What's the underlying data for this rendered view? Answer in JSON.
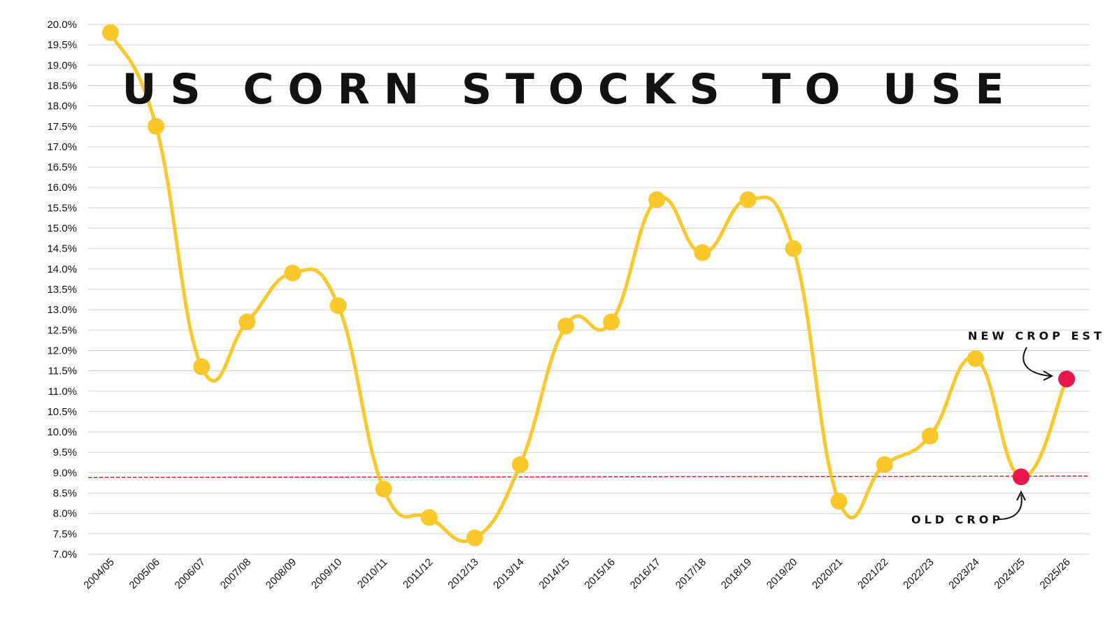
{
  "chart_data": {
    "type": "line",
    "title": "US CORN STOCKS TO USE",
    "categories": [
      "2004/05",
      "2005/06",
      "2006/07",
      "2007/08",
      "2008/09",
      "2009/10",
      "2010/11",
      "2011/12",
      "2012/13",
      "2013/14",
      "2014/15",
      "2015/16",
      "2016/17",
      "2017/18",
      "2018/19",
      "2019/20",
      "2020/21",
      "2021/22",
      "2022/23",
      "2023/24",
      "2024/25",
      "2025/26"
    ],
    "series": [
      {
        "values": [
          19.8,
          17.5,
          11.6,
          12.7,
          13.9,
          13.1,
          8.6,
          7.9,
          7.4,
          9.2,
          12.6,
          12.7,
          15.7,
          14.4,
          15.7,
          14.5,
          8.3,
          9.2,
          9.9,
          11.8,
          8.9,
          11.3
        ]
      }
    ],
    "highlighted_points": [
      {
        "category": "2024/25",
        "value": 8.9,
        "color": "#e8164a"
      },
      {
        "category": "2025/26",
        "value": 11.3,
        "color": "#e8164a"
      }
    ],
    "reference_line": {
      "value": 8.9,
      "color": "#e8161e",
      "style": "dashed"
    },
    "ylim": [
      7.0,
      20.0
    ],
    "y_ticks": [
      "7.0%",
      "7.5%",
      "8.0%",
      "8.5%",
      "9.0%",
      "9.5%",
      "10.0%",
      "10.5%",
      "11.0%",
      "11.5%",
      "12.0%",
      "12.5%",
      "13.0%",
      "13.5%",
      "14.0%",
      "14.5%",
      "15.0%",
      "15.5%",
      "16.0%",
      "16.5%",
      "17.0%",
      "17.5%",
      "18.0%",
      "18.5%",
      "19.0%",
      "19.5%",
      "20.0%"
    ],
    "grid": true,
    "line_color": "#fbc82c",
    "marker_color": "#fbc82c",
    "annotations": [
      {
        "text": "NEW CROP EST",
        "target": "2025/26"
      },
      {
        "text": "OLD CROP",
        "target": "2024/25"
      }
    ]
  }
}
